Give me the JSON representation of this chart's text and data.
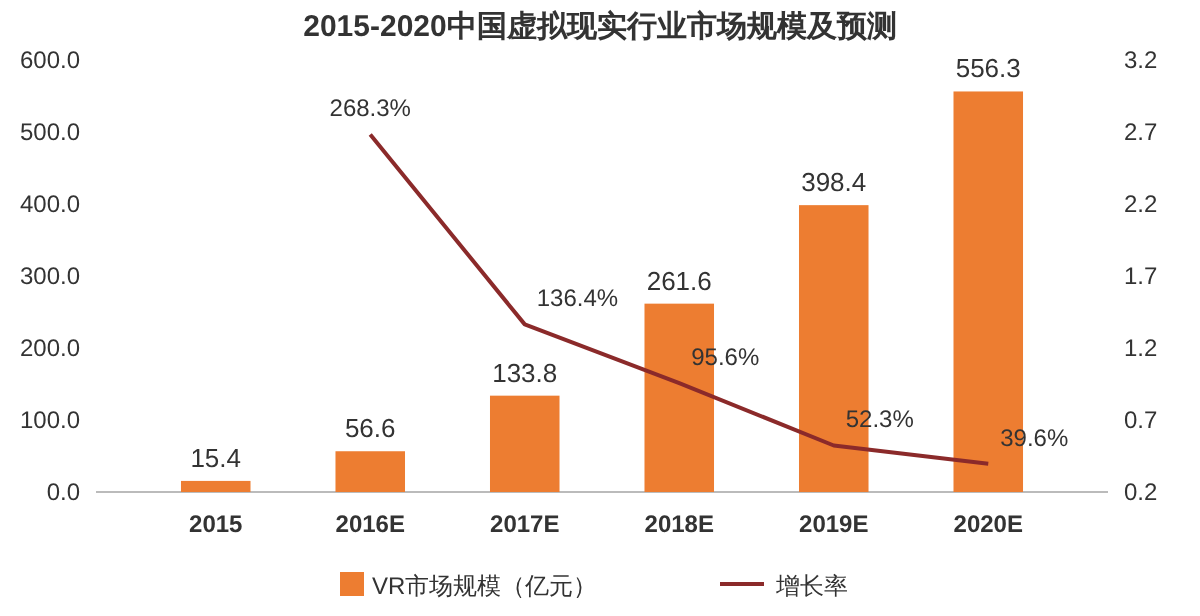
{
  "chart_data": {
    "type": "bar",
    "title": "2015-2020中国虚拟现实行业市场规模及预测",
    "categories": [
      "2015",
      "2016E",
      "2017E",
      "2018E",
      "2019E",
      "2020E"
    ],
    "series": [
      {
        "name": "VR市场规模（亿元）",
        "color": "#ed7d31",
        "values": [
          15.4,
          56.6,
          133.8,
          261.6,
          398.4,
          556.3
        ],
        "value_labels": [
          "15.4",
          "56.6",
          "133.8",
          "261.6",
          "398.4",
          "556.3"
        ]
      },
      {
        "name": "增长率",
        "type": "line",
        "axis": "y2",
        "color": "#8b2a2a",
        "values": [
          null,
          2.683,
          1.364,
          0.956,
          0.523,
          0.396
        ],
        "value_labels": [
          null,
          "268.3%",
          "136.4%",
          "95.6%",
          "52.3%",
          "39.6%"
        ]
      }
    ],
    "ylim": [
      0,
      600
    ],
    "yticks": [
      {
        "value": 0,
        "label": "0.0"
      },
      {
        "value": 100,
        "label": "100.0"
      },
      {
        "value": 200,
        "label": "200.0"
      },
      {
        "value": 300,
        "label": "300.0"
      },
      {
        "value": 400,
        "label": "400.0"
      },
      {
        "value": 500,
        "label": "500.0"
      },
      {
        "value": 600,
        "label": "600.0"
      }
    ],
    "y2lim": [
      0.2,
      3.2
    ],
    "y2ticks": [
      0.2,
      0.7,
      1.2,
      1.7,
      2.2,
      2.7,
      3.2
    ],
    "legend": "bottom",
    "grid": false,
    "marker": "none",
    "line_style": "solid"
  }
}
